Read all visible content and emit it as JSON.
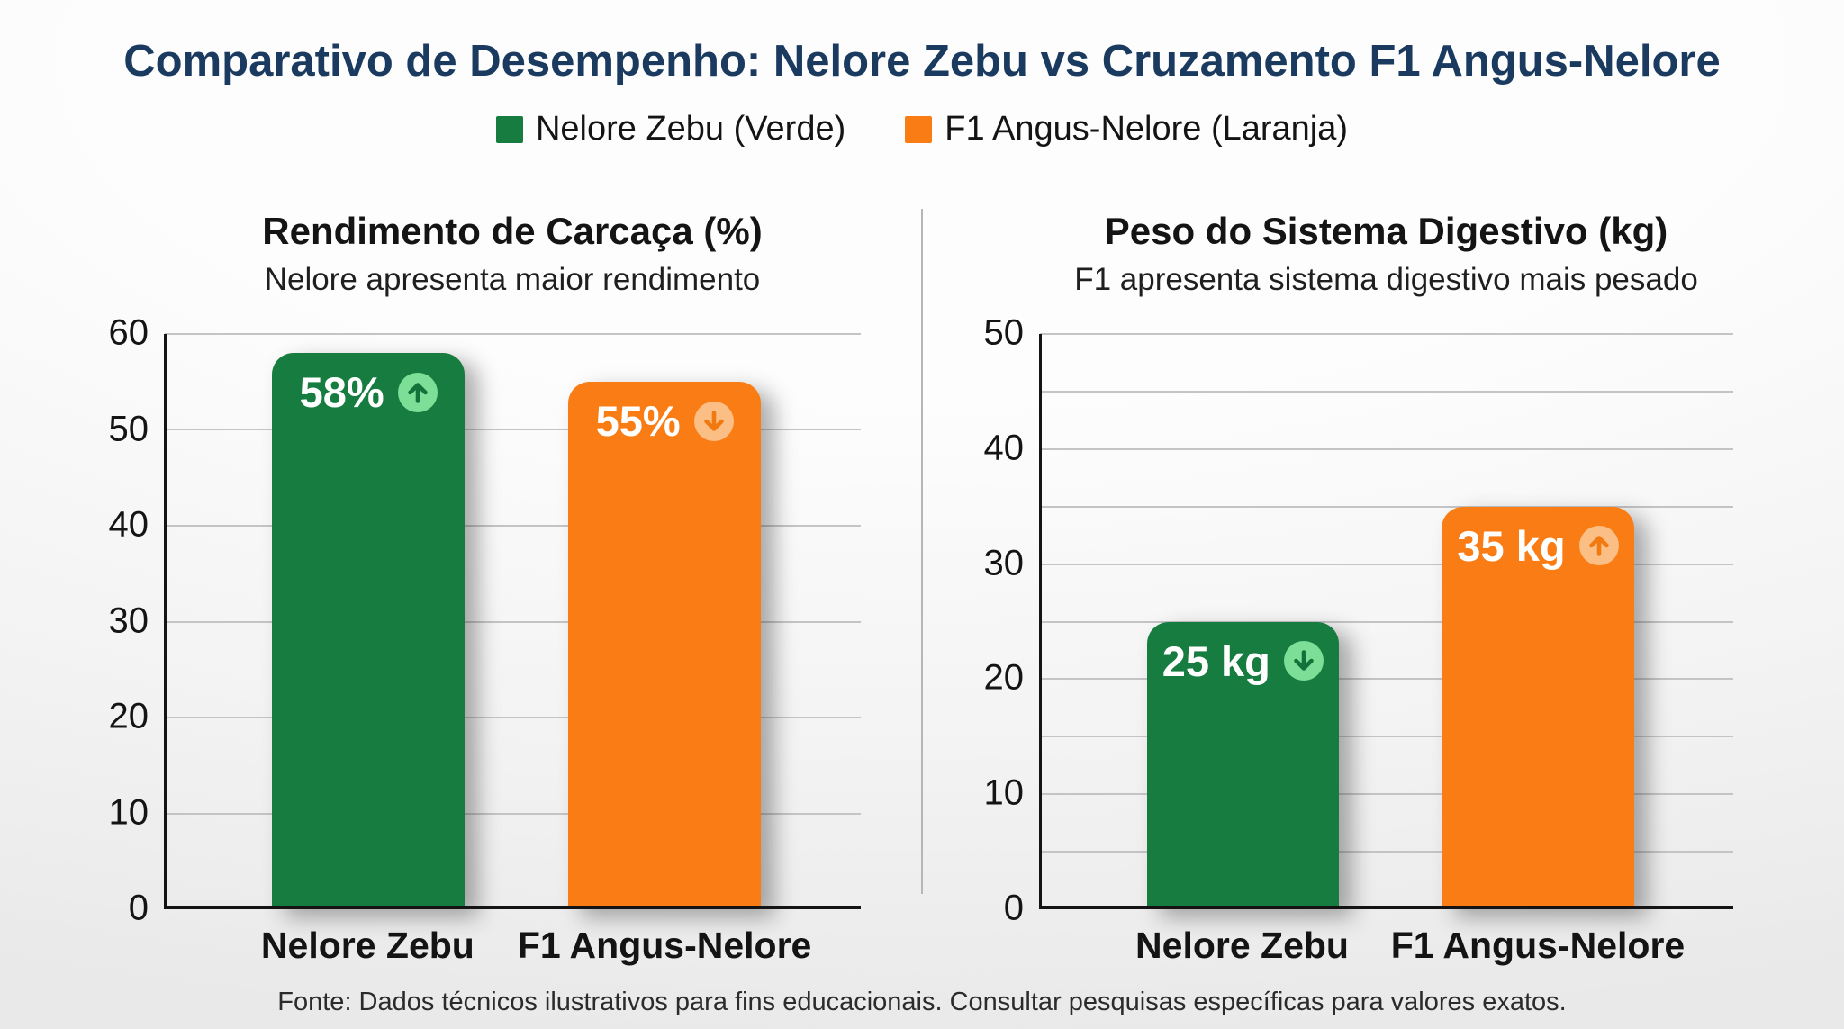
{
  "title": "Comparativo de Desempenho: Nelore Zebu vs Cruzamento F1 Angus-Nelore",
  "legend": [
    {
      "label": "Nelore Zebu (Verde)",
      "color": "#167c40"
    },
    {
      "label": "F1 Angus-Nelore (Laranja)",
      "color": "#f97c15"
    }
  ],
  "footer": "Fonte: Dados técnicos ilustrativos para fins educacionais. Consultar pesquisas específicas para valores exatos.",
  "colors": {
    "title_navy": "#1a3a5f",
    "green_bar": "#167c40",
    "green_icon_circle": "#7ddf97",
    "orange_bar": "#f97c15",
    "orange_icon_circle": "#fbbe84",
    "gridline": "#c4c4c6",
    "axis": "#141414",
    "divider": "#b3b6ba"
  },
  "chart_data": [
    {
      "type": "bar",
      "title": "Rendimento de Carcaça (%)",
      "subtitle": "Nelore apresenta maior rendimento",
      "categories": [
        "Nelore Zebu",
        "F1 Angus-Nelore"
      ],
      "values": [
        58,
        55
      ],
      "value_labels": [
        "58%",
        "55%"
      ],
      "trends": [
        "up",
        "down"
      ],
      "ylim": [
        0,
        60
      ],
      "yticks": [
        0,
        10,
        20,
        30,
        40,
        50,
        60
      ],
      "grid_step": 10,
      "grid": true,
      "bar_colors": [
        "#167c40",
        "#f97c15"
      ],
      "icon_circle_colors": [
        "#7ddf97",
        "#fbbe84"
      ],
      "icon_arrow_colors": [
        "#15713a",
        "#f07a10"
      ]
    },
    {
      "type": "bar",
      "title": "Peso do Sistema Digestivo (kg)",
      "subtitle": "F1 apresenta sistema digestivo mais pesado",
      "categories": [
        "Nelore Zebu",
        "F1 Angus-Nelore"
      ],
      "values": [
        25,
        35
      ],
      "value_labels": [
        "25 kg",
        "35 kg"
      ],
      "trends": [
        "down",
        "up"
      ],
      "ylim": [
        0,
        50
      ],
      "yticks": [
        0,
        10,
        20,
        30,
        40,
        50
      ],
      "grid_step": 5,
      "grid": true,
      "bar_colors": [
        "#167c40",
        "#f97c15"
      ],
      "icon_circle_colors": [
        "#7ddf97",
        "#fbbe84"
      ],
      "icon_arrow_colors": [
        "#15713a",
        "#f07a10"
      ]
    }
  ]
}
